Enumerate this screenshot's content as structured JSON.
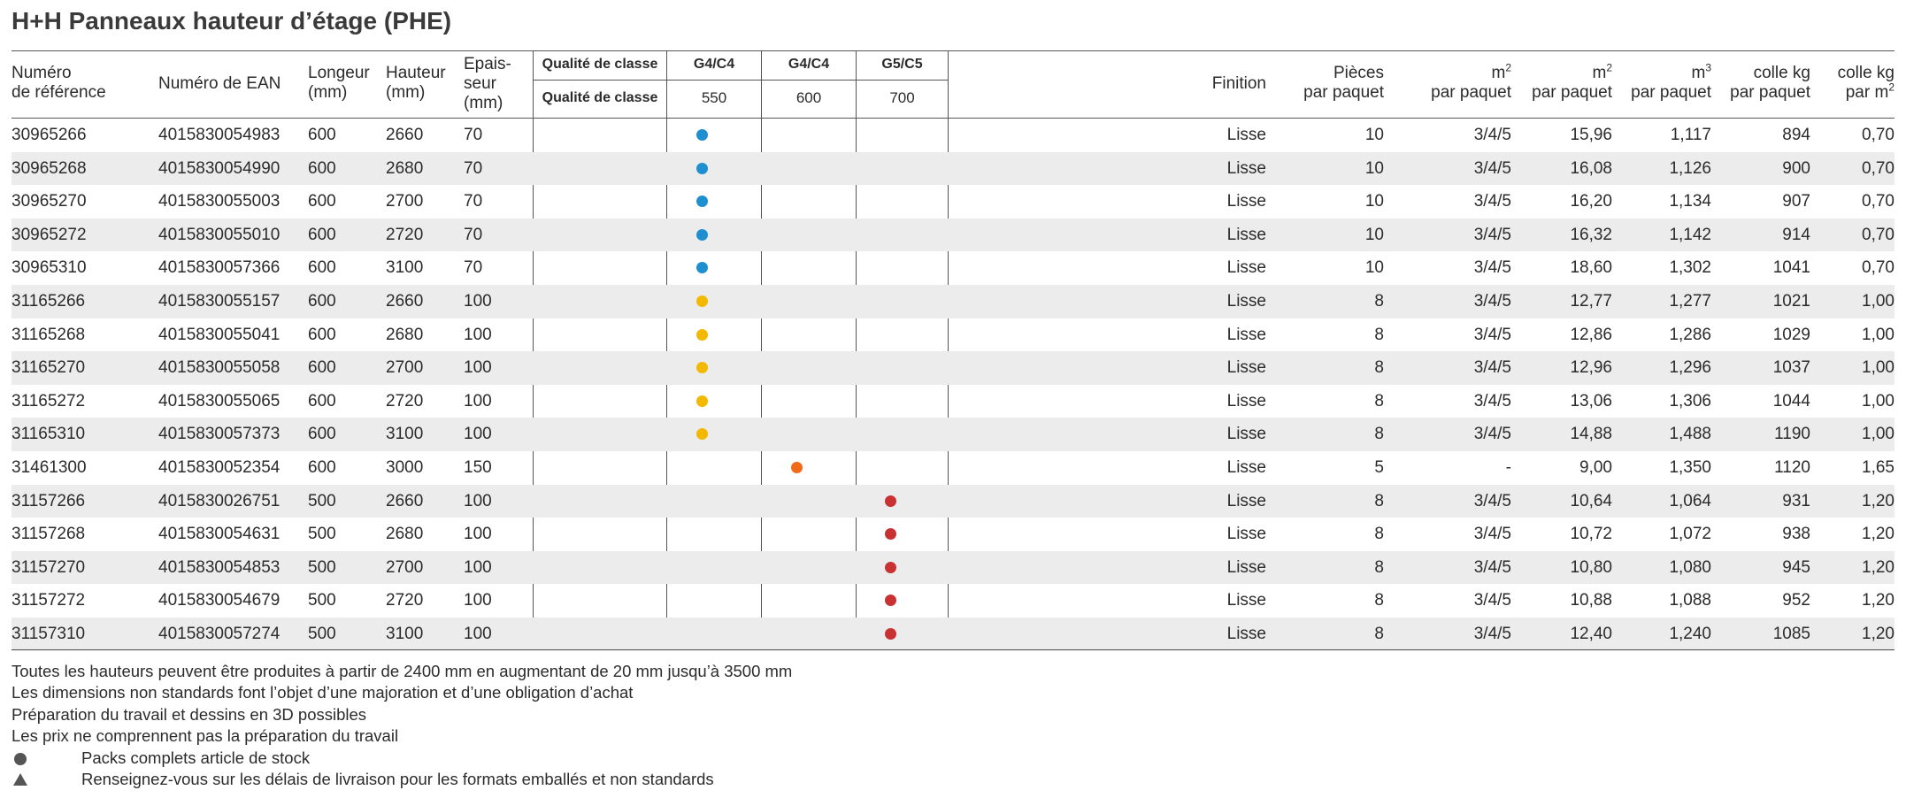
{
  "title": "H+H Panneaux hauteur d’étage (PHE)",
  "headers": {
    "ref_line1": "Numéro",
    "ref_line2": "de référence",
    "ean": "Numéro de EAN",
    "longueur_line1": "Longeur",
    "longueur_line2": "(mm)",
    "hauteur_line1": "Hauteur",
    "hauteur_line2": "(mm)",
    "epaisseur_line1": "Epais-",
    "epaisseur_line2": "seur",
    "epaisseur_line3": "(mm)",
    "qualite_top": "Qualité de classe",
    "qualite_bottom": "Qualité de classe",
    "class1_top": "G4/C4",
    "class1_bottom": "550",
    "class2_top": "G4/C4",
    "class2_bottom": "600",
    "class3_top": "G5/C5",
    "class3_bottom": "700",
    "finition": "Finition",
    "pieces_line1": "Pièces",
    "pieces_line2": "par paquet",
    "m2a_line1": "m",
    "m2a_line2": "par paquet",
    "m2b_line1": "m",
    "m2b_line2": "par paquet",
    "m3_line1": "m",
    "m3_line2": "par paquet",
    "colle_line1": "colle kg",
    "colle_line2": "par paquet",
    "colle2_line1": "colle kg",
    "colle2_line2": "par m",
    "sup2": "2",
    "sup3": "3"
  },
  "class_colors": {
    "g4c4_550_70": "#1e8fd0",
    "g4c4_550_100": "#f3b800",
    "g4c4_600": "#f06a19",
    "g5c5_700": "#c83232"
  },
  "rows": [
    {
      "ref": "30965266",
      "ean": "4015830054983",
      "longueur": "600",
      "hauteur": "2660",
      "epaisseur": "70",
      "class_col": 1,
      "dot_color": "#1e8fd0",
      "finition": "Lisse",
      "pieces": "10",
      "m2a": "3/4/5",
      "m2b": "15,96",
      "m3": "1,117",
      "colle_kg": "894",
      "colle_m2": "0,70"
    },
    {
      "ref": "30965268",
      "ean": "4015830054990",
      "longueur": "600",
      "hauteur": "2680",
      "epaisseur": "70",
      "class_col": 1,
      "dot_color": "#1e8fd0",
      "finition": "Lisse",
      "pieces": "10",
      "m2a": "3/4/5",
      "m2b": "16,08",
      "m3": "1,126",
      "colle_kg": "900",
      "colle_m2": "0,70"
    },
    {
      "ref": "30965270",
      "ean": "4015830055003",
      "longueur": "600",
      "hauteur": "2700",
      "epaisseur": "70",
      "class_col": 1,
      "dot_color": "#1e8fd0",
      "finition": "Lisse",
      "pieces": "10",
      "m2a": "3/4/5",
      "m2b": "16,20",
      "m3": "1,134",
      "colle_kg": "907",
      "colle_m2": "0,70"
    },
    {
      "ref": "30965272",
      "ean": "4015830055010",
      "longueur": "600",
      "hauteur": "2720",
      "epaisseur": "70",
      "class_col": 1,
      "dot_color": "#1e8fd0",
      "finition": "Lisse",
      "pieces": "10",
      "m2a": "3/4/5",
      "m2b": "16,32",
      "m3": "1,142",
      "colle_kg": "914",
      "colle_m2": "0,70"
    },
    {
      "ref": "30965310",
      "ean": "4015830057366",
      "longueur": "600",
      "hauteur": "3100",
      "epaisseur": "70",
      "class_col": 1,
      "dot_color": "#1e8fd0",
      "finition": "Lisse",
      "pieces": "10",
      "m2a": "3/4/5",
      "m2b": "18,60",
      "m3": "1,302",
      "colle_kg": "1041",
      "colle_m2": "0,70"
    },
    {
      "ref": "31165266",
      "ean": "4015830055157",
      "longueur": "600",
      "hauteur": "2660",
      "epaisseur": "100",
      "class_col": 1,
      "dot_color": "#f3b800",
      "finition": "Lisse",
      "pieces": "8",
      "m2a": "3/4/5",
      "m2b": "12,77",
      "m3": "1,277",
      "colle_kg": "1021",
      "colle_m2": "1,00"
    },
    {
      "ref": "31165268",
      "ean": "4015830055041",
      "longueur": "600",
      "hauteur": "2680",
      "epaisseur": "100",
      "class_col": 1,
      "dot_color": "#f3b800",
      "finition": "Lisse",
      "pieces": "8",
      "m2a": "3/4/5",
      "m2b": "12,86",
      "m3": "1,286",
      "colle_kg": "1029",
      "colle_m2": "1,00"
    },
    {
      "ref": "31165270",
      "ean": "4015830055058",
      "longueur": "600",
      "hauteur": "2700",
      "epaisseur": "100",
      "class_col": 1,
      "dot_color": "#f3b800",
      "finition": "Lisse",
      "pieces": "8",
      "m2a": "3/4/5",
      "m2b": "12,96",
      "m3": "1,296",
      "colle_kg": "1037",
      "colle_m2": "1,00"
    },
    {
      "ref": "31165272",
      "ean": "4015830055065",
      "longueur": "600",
      "hauteur": "2720",
      "epaisseur": "100",
      "class_col": 1,
      "dot_color": "#f3b800",
      "finition": "Lisse",
      "pieces": "8",
      "m2a": "3/4/5",
      "m2b": "13,06",
      "m3": "1,306",
      "colle_kg": "1044",
      "colle_m2": "1,00"
    },
    {
      "ref": "31165310",
      "ean": "4015830057373",
      "longueur": "600",
      "hauteur": "3100",
      "epaisseur": "100",
      "class_col": 1,
      "dot_color": "#f3b800",
      "finition": "Lisse",
      "pieces": "8",
      "m2a": "3/4/5",
      "m2b": "14,88",
      "m3": "1,488",
      "colle_kg": "1190",
      "colle_m2": "1,00"
    },
    {
      "ref": "31461300",
      "ean": "4015830052354",
      "longueur": "600",
      "hauteur": "3000",
      "epaisseur": "150",
      "class_col": 2,
      "dot_color": "#f06a19",
      "finition": "Lisse",
      "pieces": "5",
      "m2a": "-",
      "m2b": "9,00",
      "m3": "1,350",
      "colle_kg": "1120",
      "colle_m2": "1,65"
    },
    {
      "ref": "31157266",
      "ean": "4015830026751",
      "longueur": "500",
      "hauteur": "2660",
      "epaisseur": "100",
      "class_col": 3,
      "dot_color": "#c83232",
      "finition": "Lisse",
      "pieces": "8",
      "m2a": "3/4/5",
      "m2b": "10,64",
      "m3": "1,064",
      "colle_kg": "931",
      "colle_m2": "1,20"
    },
    {
      "ref": "31157268",
      "ean": "4015830054631",
      "longueur": "500",
      "hauteur": "2680",
      "epaisseur": "100",
      "class_col": 3,
      "dot_color": "#c83232",
      "finition": "Lisse",
      "pieces": "8",
      "m2a": "3/4/5",
      "m2b": "10,72",
      "m3": "1,072",
      "colle_kg": "938",
      "colle_m2": "1,20"
    },
    {
      "ref": "31157270",
      "ean": "4015830054853",
      "longueur": "500",
      "hauteur": "2700",
      "epaisseur": "100",
      "class_col": 3,
      "dot_color": "#c83232",
      "finition": "Lisse",
      "pieces": "8",
      "m2a": "3/4/5",
      "m2b": "10,80",
      "m3": "1,080",
      "colle_kg": "945",
      "colle_m2": "1,20"
    },
    {
      "ref": "31157272",
      "ean": "4015830054679",
      "longueur": "500",
      "hauteur": "2720",
      "epaisseur": "100",
      "class_col": 3,
      "dot_color": "#c83232",
      "finition": "Lisse",
      "pieces": "8",
      "m2a": "3/4/5",
      "m2b": "10,88",
      "m3": "1,088",
      "colle_kg": "952",
      "colle_m2": "1,20"
    },
    {
      "ref": "31157310",
      "ean": "4015830057274",
      "longueur": "500",
      "hauteur": "3100",
      "epaisseur": "100",
      "class_col": 3,
      "dot_color": "#c83232",
      "finition": "Lisse",
      "pieces": "8",
      "m2a": "3/4/5",
      "m2b": "12,40",
      "m3": "1,240",
      "colle_kg": "1085",
      "colle_m2": "1,20"
    }
  ],
  "notes": [
    "Toutes les hauteurs peuvent être produites à partir de 2400 mm en augmentant de 20 mm jusqu’à 3500 mm",
    "Les dimensions non standards font l’objet d’une majoration et d’une obligation d’achat",
    "Préparation du travail et dessins en 3D possibles",
    "Les prix ne comprennent pas la préparation du travail"
  ],
  "legend": [
    {
      "icon": "circle-icon",
      "text": "Packs complets article de stock"
    },
    {
      "icon": "triangle-icon",
      "text": "Renseignez-vous sur les délais de livraison pour les formats emballés et non standards"
    }
  ]
}
